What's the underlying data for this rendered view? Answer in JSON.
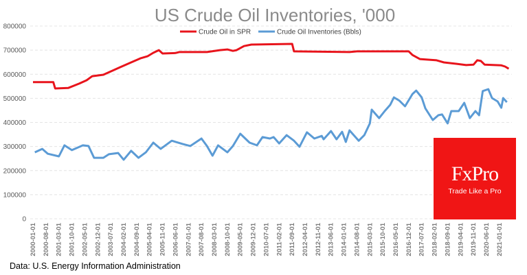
{
  "chart_data": {
    "type": "line",
    "title": "US Crude Oil Inventories, '000",
    "x_unit": "months since 2000-01",
    "ylim": [
      0,
      800000
    ],
    "yticks": [
      0,
      100000,
      200000,
      300000,
      400000,
      500000,
      600000,
      700000,
      800000
    ],
    "xtick_labels": [
      "2000-01-01",
      "2000-08-01",
      "2001-03-01",
      "2001-10-01",
      "2002-05-01",
      "2002-12-01",
      "2003-07-01",
      "2004-02-01",
      "2004-09-01",
      "2005-04-01",
      "2005-11-01",
      "2006-06-01",
      "2007-01-01",
      "2007-08-01",
      "2008-03-01",
      "2008-10-01",
      "2009-05-01",
      "2009-12-01",
      "2010-07-01",
      "2011-02-01",
      "2011-09-01",
      "2012-04-01",
      "2012-11-01",
      "2013-06-01",
      "2014-01-01",
      "2014-08-01",
      "2015-03-01",
      "2015-10-01",
      "2016-05-01",
      "2016-12-01",
      "2017-07-01",
      "2018-02-01",
      "2018-09-01",
      "2019-04-01",
      "2019-11-01",
      "2020-06-01",
      "2021-01-01"
    ],
    "xtick_step_months": 7,
    "x_range_months": [
      0,
      257
    ],
    "grid": true,
    "legend_placement": "top-center",
    "series": [
      {
        "name": "Crude Oil in SPR",
        "color": "#e8141c",
        "x": [
          0,
          11,
          12,
          19,
          25,
          29,
          32,
          38,
          43,
          47,
          53,
          58,
          62,
          65,
          68,
          70,
          77,
          79,
          94,
          101,
          105,
          108,
          110,
          114,
          118,
          140,
          141,
          171,
          175,
          203,
          205,
          209,
          218,
          222,
          229,
          234,
          238,
          240,
          242,
          244,
          253,
          255,
          257
        ],
        "y": [
          567000,
          567000,
          541000,
          543000,
          561000,
          575000,
          592000,
          598000,
          615000,
          629000,
          649000,
          666000,
          675000,
          689000,
          700000,
          686000,
          688000,
          692000,
          692000,
          700000,
          703000,
          697000,
          700000,
          717000,
          723000,
          726000,
          695000,
          692000,
          695000,
          695000,
          680000,
          663000,
          658000,
          649000,
          643000,
          638000,
          640000,
          658000,
          655000,
          640000,
          637000,
          632000,
          623000
        ]
      },
      {
        "name": "Crude Oil Inventories (Bbls)",
        "color": "#5b9bd5",
        "x": [
          1,
          5,
          8,
          14,
          17,
          21,
          27,
          30,
          33,
          38,
          41,
          46,
          49,
          53,
          57,
          61,
          65,
          69,
          75,
          81,
          85,
          91,
          94,
          97,
          100,
          105,
          108,
          112,
          117,
          121,
          124,
          128,
          130,
          133,
          137,
          141,
          144,
          148,
          152,
          156,
          157,
          161,
          164,
          167,
          169,
          171,
          176,
          179,
          182,
          183,
          187,
          190,
          193,
          195,
          198,
          201,
          205,
          207,
          210,
          212,
          216,
          219,
          221,
          224,
          226,
          230,
          233,
          236,
          239,
          241,
          243,
          246,
          248,
          251,
          253,
          254,
          256
        ],
        "y": [
          276000,
          290000,
          270000,
          259000,
          305000,
          285000,
          305000,
          302000,
          253000,
          253000,
          268000,
          273000,
          245000,
          282000,
          253000,
          276000,
          316000,
          290000,
          324000,
          310000,
          302000,
          333000,
          302000,
          262000,
          305000,
          276000,
          302000,
          353000,
          316000,
          305000,
          339000,
          333000,
          339000,
          313000,
          347000,
          324000,
          299000,
          359000,
          333000,
          344000,
          330000,
          364000,
          330000,
          361000,
          319000,
          367000,
          324000,
          347000,
          396000,
          453000,
          418000,
          447000,
          473000,
          504000,
          490000,
          467000,
          518000,
          532000,
          504000,
          458000,
          410000,
          430000,
          433000,
          396000,
          447000,
          447000,
          481000,
          418000,
          447000,
          430000,
          530000,
          538000,
          501000,
          487000,
          461000,
          501000,
          484000
        ]
      }
    ]
  },
  "source_note": "Data: U.S. Energy Information Administration",
  "logo": {
    "brand": "FxPro",
    "tagline": "Trade Like a Pro"
  }
}
